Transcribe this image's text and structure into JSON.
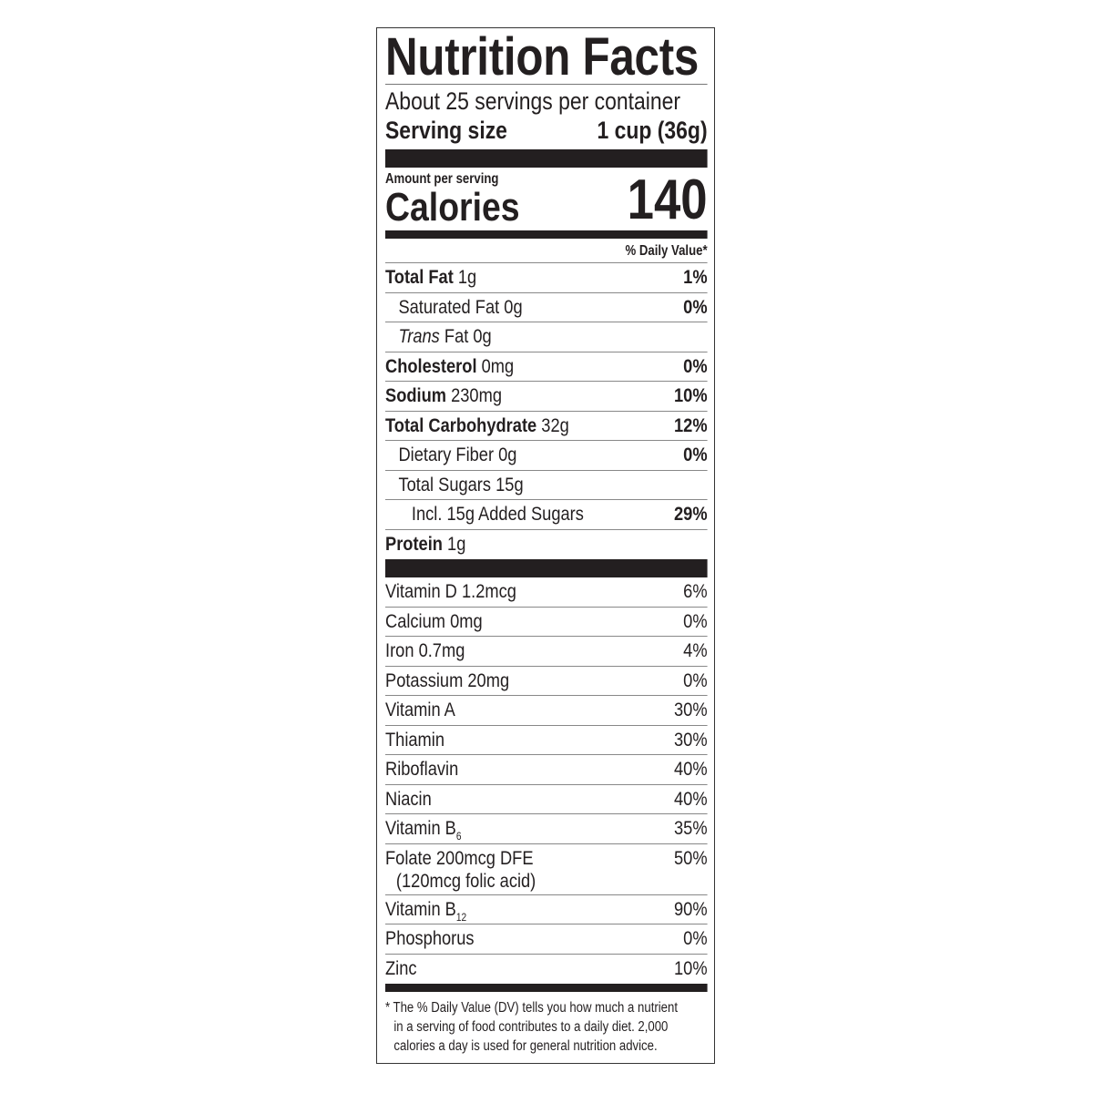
{
  "title": "Nutrition Facts",
  "servings_per_container": "About 25 servings per container",
  "serving_size_label": "Serving size",
  "serving_size_value": "1 cup (36g)",
  "amount_per_serving": "Amount per serving",
  "calories_label": "Calories",
  "calories_value": "140",
  "daily_value_header": "% Daily Value*",
  "nutrients": [
    {
      "name": "Total Fat",
      "amount": "1g",
      "dv": "1%"
    },
    {
      "name": "Saturated Fat",
      "amount": "0g",
      "dv": "0%"
    },
    {
      "name": "Trans",
      "amount": "Fat 0g",
      "dv": ""
    },
    {
      "name": "Cholesterol",
      "amount": "0mg",
      "dv": "0%"
    },
    {
      "name": "Sodium",
      "amount": "230mg",
      "dv": "10%"
    },
    {
      "name": "Total Carbohydrate",
      "amount": "32g",
      "dv": "12%"
    },
    {
      "name": "Dietary Fiber",
      "amount": "0g",
      "dv": "0%"
    },
    {
      "name": "Total Sugars",
      "amount": "15g",
      "dv": ""
    },
    {
      "name": "Incl. 15g Added Sugars",
      "amount": "",
      "dv": "29%"
    },
    {
      "name": "Protein",
      "amount": "1g",
      "dv": ""
    }
  ],
  "vitamins": [
    {
      "name": "Vitamin D 1.2mcg",
      "dv": "6%"
    },
    {
      "name": "Calcium 0mg",
      "dv": "0%"
    },
    {
      "name": "Iron 0.7mg",
      "dv": "4%"
    },
    {
      "name": "Potassium 20mg",
      "dv": "0%"
    },
    {
      "name": "Vitamin A",
      "dv": "30%"
    },
    {
      "name": "Thiamin",
      "dv": "30%"
    },
    {
      "name": "Riboflavin",
      "dv": "40%"
    },
    {
      "name": "Niacin",
      "dv": "40%"
    },
    {
      "name": "Vitamin B",
      "sub": "6",
      "dv": "35%"
    },
    {
      "name": "Folate 200mcg DFE",
      "line2": "(120mcg folic acid)",
      "dv": "50%"
    },
    {
      "name": "Vitamin B",
      "sub": "12",
      "dv": "90%"
    },
    {
      "name": "Phosphorus",
      "dv": "0%"
    },
    {
      "name": "Zinc",
      "dv": "10%"
    }
  ],
  "footnote": [
    "* The % Daily Value (DV) tells you how much a nutrient",
    "in a serving of food contributes to a daily diet. 2,000",
    "calories a day is used for general nutrition advice."
  ]
}
